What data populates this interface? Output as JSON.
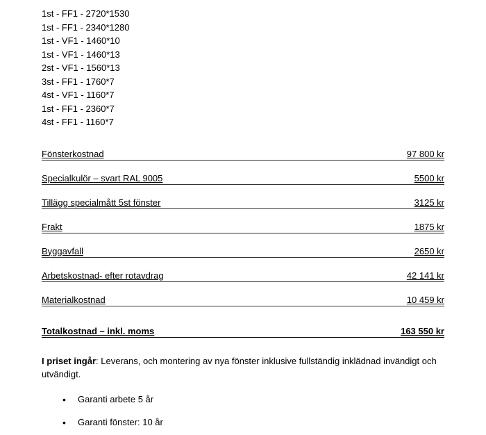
{
  "specs": [
    "1st - FF1 - 2720*1530",
    "1st - FF1 - 2340*1280",
    "1st - VF1 - 1460*10",
    "1st - VF1 - 1460*13",
    "2st - VF1 - 1560*13",
    "3st - FF1 - 1760*7",
    "4st - VF1 - 1160*7",
    "1st - FF1 - 2360*7",
    "4st - FF1 - 1160*7"
  ],
  "costs": [
    {
      "label": "Fönsterkostnad",
      "value": "97 800 kr"
    },
    {
      "label": "Specialkulör – svart RAL 9005",
      "value": "5500 kr"
    },
    {
      "label": "Tillägg specialmått 5st fönster",
      "value": "3125 kr"
    },
    {
      "label": "Frakt",
      "value": "1875 kr"
    },
    {
      "label": "Byggavfall",
      "value": "2650 kr"
    },
    {
      "label": "Arbetskostnad- efter rotavdrag",
      "value": "42 141 kr"
    },
    {
      "label": "Materialkostnad",
      "value": "10 459 kr"
    }
  ],
  "total": {
    "label": "Totalkostnad – inkl. moms",
    "value": "163 550 kr"
  },
  "included": {
    "lead": "I priset ingår",
    "text": ": Leverans, och montering av nya fönster inklusive fullständig inklädnad invändigt och utvändigt."
  },
  "bullets": [
    "Garanti arbete 5 år",
    "Garanti fönster: 10 år"
  ]
}
